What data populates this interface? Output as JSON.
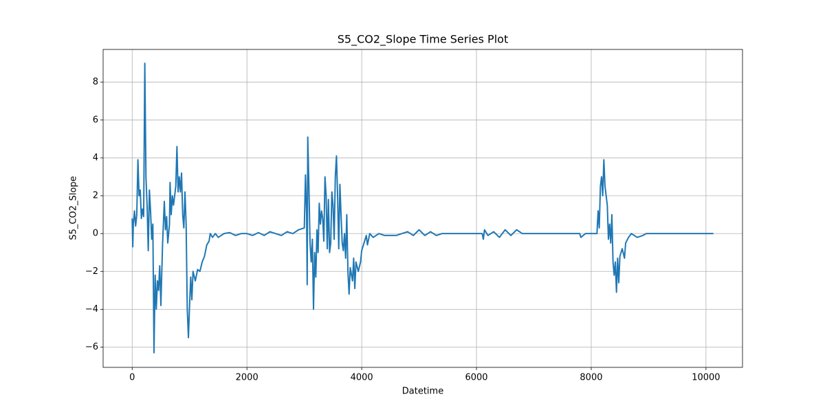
{
  "chart_data": {
    "type": "line",
    "title": "S5_CO2_Slope Time Series Plot",
    "x_label": "Datetime",
    "y_label": "S5_CO2_Slope",
    "color": "#1f77b4",
    "grid": true,
    "xlim": [
      -506.5,
      10636.5
    ],
    "ylim": [
      -7.07,
      9.73
    ],
    "xticks": [
      0,
      2000,
      4000,
      6000,
      8000,
      10000
    ],
    "yticks": [
      {
        "value": -6,
        "label": "−6"
      },
      {
        "value": -4,
        "label": "−4"
      },
      {
        "value": -2,
        "label": "−2"
      },
      0,
      2,
      4,
      6,
      8
    ],
    "x": [
      0,
      10,
      20,
      40,
      60,
      80,
      100,
      120,
      140,
      160,
      180,
      200,
      220,
      240,
      260,
      280,
      300,
      320,
      340,
      360,
      380,
      400,
      420,
      440,
      460,
      480,
      500,
      530,
      560,
      580,
      600,
      620,
      650,
      660,
      680,
      700,
      720,
      760,
      780,
      800,
      820,
      840,
      860,
      880,
      900,
      920,
      940,
      960,
      980,
      1000,
      1020,
      1040,
      1060,
      1100,
      1140,
      1180,
      1220,
      1260,
      1300,
      1340,
      1360,
      1400,
      1450,
      1500,
      1600,
      1700,
      1800,
      1900,
      2000,
      2100,
      2200,
      2300,
      2400,
      2500,
      2600,
      2700,
      2800,
      2900,
      3000,
      3020,
      3040,
      3050,
      3060,
      3080,
      3100,
      3120,
      3140,
      3160,
      3180,
      3200,
      3220,
      3240,
      3260,
      3280,
      3300,
      3320,
      3340,
      3360,
      3380,
      3400,
      3420,
      3440,
      3460,
      3480,
      3500,
      3520,
      3540,
      3560,
      3580,
      3600,
      3620,
      3640,
      3660,
      3680,
      3700,
      3720,
      3740,
      3760,
      3780,
      3800,
      3840,
      3860,
      3880,
      3900,
      3940,
      3980,
      4000,
      4040,
      4080,
      4100,
      4140,
      4200,
      4300,
      4400,
      4600,
      4700,
      4800,
      4900,
      5000,
      5100,
      5200,
      5300,
      5400,
      6100,
      6120,
      6140,
      6200,
      6300,
      6400,
      6500,
      6600,
      6700,
      6800,
      7800,
      7820,
      7900,
      8100,
      8120,
      8140,
      8160,
      8180,
      8200,
      8220,
      8240,
      8260,
      8280,
      8300,
      8320,
      8340,
      8360,
      8380,
      8400,
      8420,
      8440,
      8460,
      8480,
      8500,
      8540,
      8580,
      8600,
      8650,
      8700,
      8800,
      8900,
      8960,
      10130
    ],
    "values": [
      0.8,
      -0.7,
      0.5,
      1.2,
      0.4,
      1.0,
      3.9,
      2.0,
      2.3,
      0.8,
      1.3,
      0.9,
      9.0,
      3.0,
      1.5,
      -0.9,
      2.3,
      1.2,
      -0.3,
      0.5,
      -6.3,
      -2.2,
      -4.0,
      -2.5,
      -3.0,
      -1.7,
      -3.8,
      -0.5,
      1.7,
      0.2,
      0.9,
      -0.5,
      0.5,
      2.7,
      1.0,
      2.0,
      1.5,
      2.5,
      4.6,
      2.2,
      3.0,
      2.2,
      3.2,
      1.0,
      0.3,
      2.2,
      0.5,
      -4.0,
      -5.5,
      -3.8,
      -2.3,
      -3.5,
      -2.0,
      -2.5,
      -1.9,
      -2.0,
      -1.5,
      -1.2,
      -0.6,
      -0.4,
      0.0,
      -0.2,
      0.0,
      -0.2,
      0.0,
      0.05,
      -0.1,
      0.0,
      0.0,
      -0.1,
      0.05,
      -0.1,
      0.1,
      0.0,
      -0.1,
      0.1,
      0.0,
      0.2,
      0.3,
      3.1,
      1.0,
      -2.7,
      5.1,
      2.5,
      -0.5,
      -1.5,
      -0.3,
      -4.0,
      -1.0,
      -2.3,
      0.2,
      -1.0,
      1.6,
      0.5,
      1.2,
      0.8,
      -0.4,
      3.0,
      2.0,
      -0.8,
      1.8,
      -1.0,
      -0.5,
      2.2,
      1.5,
      -0.3,
      3.0,
      4.1,
      2.0,
      -0.8,
      2.6,
      1.0,
      -0.5,
      -0.9,
      0.0,
      -1.3,
      1.0,
      -2.0,
      -3.2,
      -1.8,
      -2.5,
      -1.3,
      -2.9,
      -1.5,
      -2.0,
      -1.5,
      -0.9,
      -0.5,
      -0.1,
      -0.6,
      0.0,
      -0.2,
      0.0,
      -0.1,
      -0.1,
      0.0,
      0.1,
      -0.1,
      0.2,
      -0.1,
      0.1,
      -0.1,
      0.0,
      0.0,
      -0.3,
      0.2,
      -0.1,
      0.1,
      -0.2,
      0.2,
      -0.1,
      0.2,
      0.0,
      0.0,
      -0.2,
      0.0,
      0.0,
      1.2,
      0.3,
      2.5,
      3.0,
      2.0,
      3.9,
      2.5,
      2.0,
      1.5,
      -0.3,
      0.5,
      -0.5,
      1.0,
      -1.5,
      -2.2,
      -1.5,
      -3.1,
      -1.3,
      -2.6,
      -1.2,
      -0.8,
      -1.3,
      -0.5,
      -0.2,
      0.0,
      -0.2,
      -0.1,
      0.0,
      0.0
    ]
  }
}
